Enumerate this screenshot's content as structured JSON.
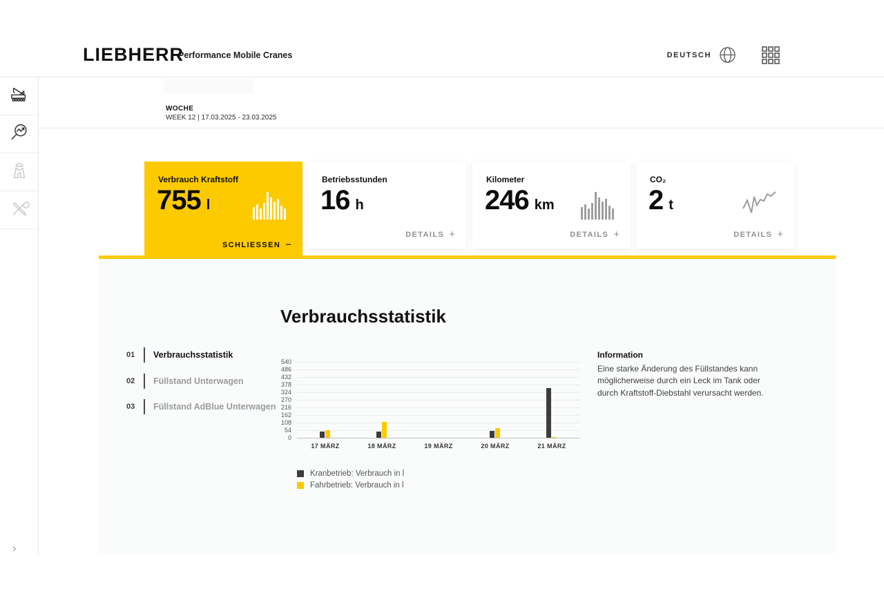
{
  "header": {
    "logo": "LIEBHERR",
    "app_title": "Performance Mobile Cranes",
    "language": "DEUTSCH"
  },
  "period": {
    "label": "WOCHE",
    "value": "WEEK 12 | 17.03.2025 - 23.03.2025"
  },
  "sidebar": {
    "expand_symbol": "›",
    "items": [
      {
        "icon": "mobile-crane-icon"
      },
      {
        "icon": "performance-analytics-icon"
      },
      {
        "icon": "operator-vest-icon"
      },
      {
        "icon": "service-tools-icon"
      }
    ]
  },
  "kpi_cards": [
    {
      "title": "Verbrauch Kraftstoff",
      "value": "755",
      "unit": "l",
      "action": "SCHLIESSEN",
      "action_symbol": "−",
      "state": "active"
    },
    {
      "title": "Betriebsstunden",
      "value": "16",
      "unit": "h",
      "action": "DETAILS",
      "action_symbol": "+",
      "state": "collapsed"
    },
    {
      "title": "Kilometer",
      "value": "246",
      "unit": "km",
      "action": "DETAILS",
      "action_symbol": "+",
      "state": "collapsed"
    },
    {
      "title": "CO₂",
      "value": "2",
      "unit": "t",
      "action": "DETAILS",
      "action_symbol": "+",
      "state": "collapsed"
    }
  ],
  "stats_section": {
    "heading": "Verbrauchsstatistik",
    "nav": [
      {
        "number": "01",
        "label": "Verbrauchsstatistik",
        "active": true
      },
      {
        "number": "02",
        "label": "Füllstand Unterwagen",
        "active": false
      },
      {
        "number": "03",
        "label": "Füllstand AdBlue Unterwagen",
        "active": false
      }
    ],
    "info": {
      "title": "Information",
      "text": "Eine starke Änderung des Füllstandes kann möglicherweise durch ein Leck im Tank oder durch Kraftstoff-Diebstahl verursacht werden."
    }
  },
  "chart_data": {
    "type": "bar",
    "title": "Verbrauchsstatistik",
    "categories": [
      "17 MÄRZ",
      "18 MÄRZ",
      "19 MÄRZ",
      "20 MÄRZ",
      "21 MÄRZ"
    ],
    "series": [
      {
        "name": "Kranbetrieb: Verbrauch in l",
        "color": "#3d3d3d",
        "values": [
          45,
          45,
          0,
          48,
          355
        ]
      },
      {
        "name": "Fahrbetrieb: Verbrauch in l",
        "color": "#fdca00",
        "values": [
          54,
          115,
          0,
          70,
          4
        ]
      }
    ],
    "yticks": [
      540,
      486,
      432,
      378,
      324,
      270,
      216,
      162,
      108,
      54,
      0
    ],
    "ylim": [
      0,
      540
    ],
    "xlabel": "",
    "ylabel": "",
    "grid": true,
    "legend_position": "bottom-left"
  },
  "colors": {
    "accent_yellow": "#fdca00",
    "dark_bar": "#3d3d3d",
    "panel_bg": "#fafbfb"
  }
}
